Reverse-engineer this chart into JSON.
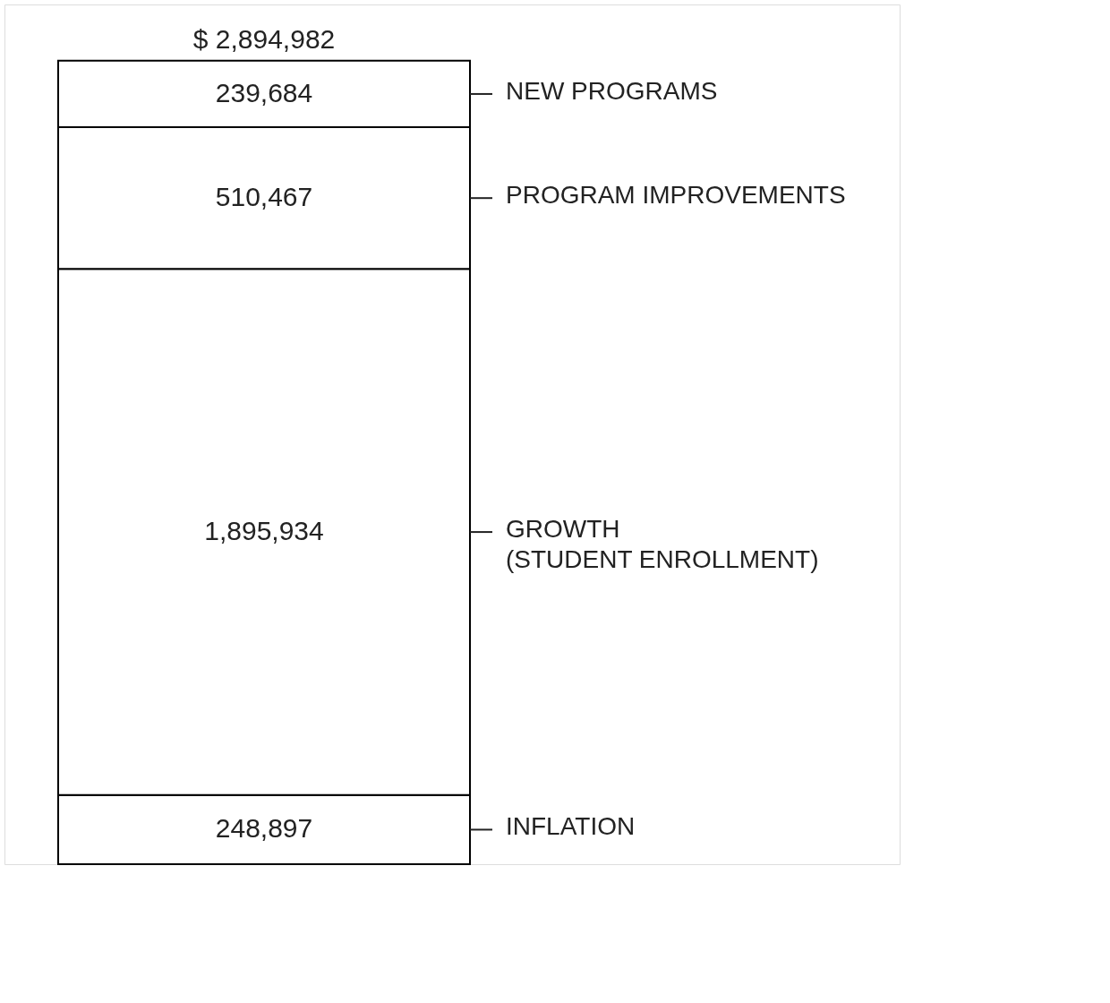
{
  "chart_data": {
    "type": "bar",
    "stacked": true,
    "categories": [
      null
    ],
    "series": [
      {
        "name": "INFLATION",
        "color": "#ffffff",
        "values": [
          248897
        ],
        "value_labels": [
          "248,897"
        ]
      },
      {
        "name": "GROWTH\n(STUDENT ENROLLMENT)",
        "color": "#ffffff",
        "values": [
          1895934
        ],
        "value_labels": [
          "1,895,934"
        ]
      },
      {
        "name": "PROGRAM IMPROVEMENTS",
        "color": "#ffffff",
        "values": [
          510467
        ],
        "value_labels": [
          "510,467"
        ]
      },
      {
        "name": "NEW PROGRAMS",
        "color": "#ffffff",
        "values": [
          239684
        ],
        "value_labels": [
          "239,684"
        ]
      }
    ],
    "totals": [
      "$ 2,894,982"
    ],
    "tick_labels": false
  }
}
